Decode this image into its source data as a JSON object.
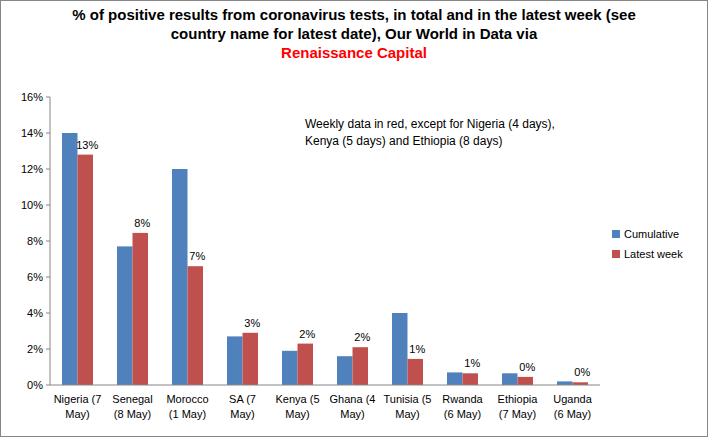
{
  "chart_data": {
    "type": "bar",
    "title": "% of positive results from coronavirus tests, in total and in the latest week (see country name for latest date), Our World in Data via",
    "source": "Renaissance Capital",
    "annotation": "Weekly data in red, except for Nigeria (4 days), Kenya (5 days) and Ethiopia (8 days)",
    "categories": [
      "Nigeria (7 May)",
      "Senegal (8 May)",
      "Morocco (1 May)",
      "SA (7 May)",
      "Kenya (5 May)",
      "Ghana (4 May)",
      "Tunisia (5 May)",
      "Rwanda (6 May)",
      "Ethiopia (7 May)",
      "Uganda (6 May)"
    ],
    "series": [
      {
        "name": "Cumulative",
        "color": "#4f81bd",
        "values": [
          14.0,
          7.7,
          12.0,
          2.7,
          1.9,
          1.6,
          4.0,
          0.7,
          0.65,
          0.2
        ]
      },
      {
        "name": "Latest week",
        "color": "#c0504d",
        "values": [
          12.8,
          8.45,
          6.6,
          2.9,
          2.3,
          2.1,
          1.45,
          0.65,
          0.45,
          0.15
        ],
        "value_labels": [
          "13%",
          "8%",
          "7%",
          "3%",
          "2%",
          "2%",
          "1%",
          "1%",
          "0%",
          "0%"
        ]
      }
    ],
    "ylim": [
      0,
      16
    ],
    "yticks": [
      {
        "value": 0,
        "label": "0%"
      },
      {
        "value": 2,
        "label": "2%"
      },
      {
        "value": 4,
        "label": "4%"
      },
      {
        "value": 6,
        "label": "6%"
      },
      {
        "value": 8,
        "label": "8%"
      },
      {
        "value": 10,
        "label": "10%"
      },
      {
        "value": 12,
        "label": "12%"
      },
      {
        "value": 14,
        "label": "14%"
      },
      {
        "value": 16,
        "label": "16%"
      }
    ],
    "grid": false,
    "legend": "right",
    "data_labels": true
  }
}
